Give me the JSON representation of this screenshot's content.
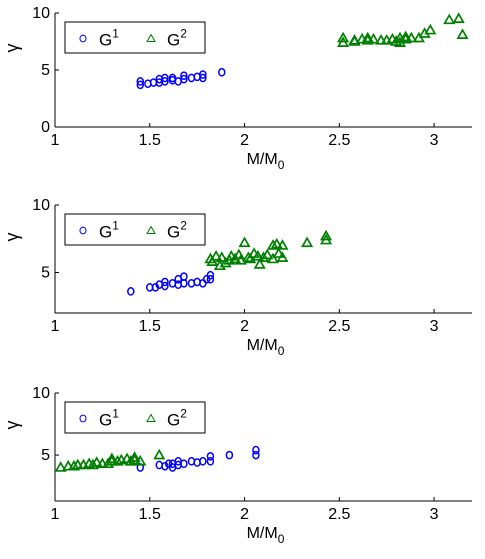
{
  "colors": {
    "g1": "#0000ff",
    "g2": "#008000",
    "axis": "#000000"
  },
  "chart_data": [
    {
      "type": "scatter",
      "xlabel": "M/M",
      "xlabel_sub": "0",
      "ylabel": "γ",
      "xlim": [
        1,
        3.2
      ],
      "ylim": [
        0,
        10
      ],
      "xticks": [
        "1",
        "1.5",
        "2",
        "2.5",
        "3"
      ],
      "yticks": [
        "0",
        "5",
        "10"
      ],
      "legend": {
        "placement": "top-left",
        "entries": [
          {
            "base": "G",
            "sup": "1"
          },
          {
            "base": "G",
            "sup": "2"
          }
        ]
      },
      "series": [
        {
          "name": "G1",
          "marker": "circle",
          "x": [
            1.45,
            1.45,
            1.49,
            1.52,
            1.55,
            1.55,
            1.58,
            1.58,
            1.62,
            1.62,
            1.65,
            1.68,
            1.68,
            1.72,
            1.75,
            1.78,
            1.78,
            1.88
          ],
          "y": [
            3.7,
            4.0,
            3.8,
            3.9,
            3.9,
            4.2,
            4.0,
            4.3,
            4.1,
            4.3,
            4.0,
            4.2,
            4.5,
            4.3,
            4.4,
            4.3,
            4.6,
            4.8
          ]
        },
        {
          "name": "G2",
          "marker": "triangle",
          "x": [
            2.52,
            2.52,
            2.58,
            2.58,
            2.62,
            2.65,
            2.65,
            2.68,
            2.72,
            2.75,
            2.78,
            2.8,
            2.82,
            2.82,
            2.85,
            2.85,
            2.88,
            2.92,
            2.95,
            2.98,
            3.08,
            3.13,
            3.15
          ],
          "y": [
            7.4,
            7.8,
            7.5,
            7.6,
            7.7,
            7.6,
            7.8,
            7.7,
            7.6,
            7.6,
            7.7,
            7.5,
            7.4,
            7.8,
            7.7,
            7.9,
            7.8,
            7.8,
            8.2,
            8.5,
            9.4,
            9.5,
            8.1
          ]
        }
      ]
    },
    {
      "type": "scatter",
      "xlabel": "M/M",
      "xlabel_sub": "0",
      "ylabel": "γ",
      "xlim": [
        1,
        3.2
      ],
      "ylim": [
        2,
        10
      ],
      "xticks": [
        "1",
        "1.5",
        "2",
        "2.5",
        "3"
      ],
      "yticks": [
        "5",
        "10"
      ],
      "legend": {
        "placement": "top-left",
        "entries": [
          {
            "base": "G",
            "sup": "1"
          },
          {
            "base": "G",
            "sup": "2"
          }
        ]
      },
      "series": [
        {
          "name": "G1",
          "marker": "circle",
          "x": [
            1.4,
            1.5,
            1.53,
            1.55,
            1.58,
            1.58,
            1.62,
            1.65,
            1.65,
            1.68,
            1.68,
            1.72,
            1.75,
            1.78,
            1.8,
            1.82,
            1.82
          ],
          "y": [
            3.6,
            3.9,
            3.9,
            4.1,
            4.0,
            4.3,
            4.2,
            4.1,
            4.5,
            4.2,
            4.7,
            4.2,
            4.3,
            4.2,
            4.5,
            4.5,
            4.8
          ]
        },
        {
          "name": "G2",
          "marker": "triangle",
          "x": [
            1.82,
            1.83,
            1.85,
            1.87,
            1.88,
            1.9,
            1.92,
            1.93,
            1.95,
            1.97,
            1.98,
            2.0,
            2.02,
            2.03,
            2.05,
            2.07,
            2.08,
            2.1,
            2.12,
            2.15,
            2.15,
            2.17,
            2.18,
            2.2,
            2.2,
            2.33,
            2.43,
            2.43
          ],
          "y": [
            6.0,
            5.8,
            6.2,
            5.5,
            6.1,
            5.7,
            5.9,
            6.2,
            6.0,
            6.3,
            5.9,
            7.2,
            6.1,
            6.0,
            6.4,
            6.2,
            5.6,
            6.1,
            6.3,
            6.0,
            7.0,
            7.1,
            6.4,
            6.1,
            7.0,
            7.2,
            7.4,
            7.7
          ]
        }
      ]
    },
    {
      "type": "scatter",
      "xlabel": "M/M",
      "xlabel_sub": "0",
      "ylabel": "γ",
      "xlim": [
        1,
        3.2
      ],
      "ylim": [
        1.3,
        10
      ],
      "xticks": [
        "1",
        "1.5",
        "2",
        "2.5",
        "3"
      ],
      "yticks": [
        "5",
        "10"
      ],
      "legend": {
        "placement": "top-left",
        "entries": [
          {
            "base": "G",
            "sup": "1"
          },
          {
            "base": "G",
            "sup": "2"
          }
        ]
      },
      "series": [
        {
          "name": "G1",
          "marker": "circle",
          "x": [
            1.45,
            1.55,
            1.58,
            1.6,
            1.62,
            1.62,
            1.65,
            1.65,
            1.68,
            1.72,
            1.75,
            1.78,
            1.82,
            1.82,
            1.92,
            2.06,
            2.06
          ],
          "y": [
            4.0,
            4.2,
            4.1,
            4.3,
            4.0,
            4.3,
            4.2,
            4.5,
            4.3,
            4.5,
            4.4,
            4.5,
            4.5,
            4.9,
            5.0,
            5.0,
            5.4
          ]
        },
        {
          "name": "G2",
          "marker": "triangle",
          "x": [
            1.03,
            1.07,
            1.1,
            1.12,
            1.15,
            1.18,
            1.2,
            1.22,
            1.25,
            1.28,
            1.3,
            1.3,
            1.33,
            1.35,
            1.38,
            1.4,
            1.42,
            1.42,
            1.45,
            1.55
          ],
          "y": [
            4.0,
            4.1,
            4.1,
            4.2,
            4.2,
            4.3,
            4.2,
            4.4,
            4.3,
            4.3,
            4.5,
            4.7,
            4.5,
            4.6,
            4.7,
            4.5,
            4.6,
            4.8,
            4.5,
            5.0
          ]
        }
      ]
    }
  ]
}
